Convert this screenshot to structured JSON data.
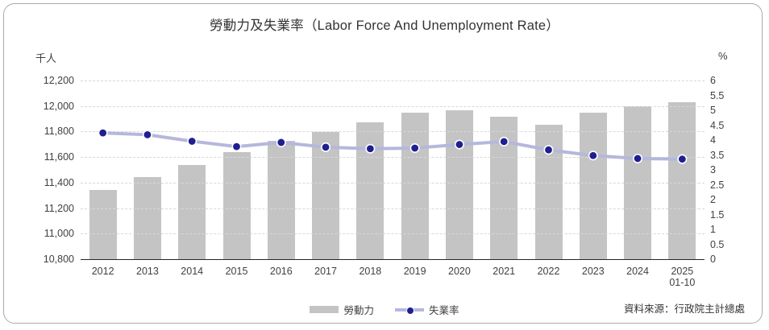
{
  "panel": {
    "title": "勞動力及失業率（Labor Force And Unemployment Rate）",
    "source": "資料來源：行政院主計總處"
  },
  "chart_data": {
    "type": "bar+line",
    "title": "勞動力及失業率（Labor Force And Unemployment Rate）",
    "categories": [
      "2012",
      "2013",
      "2014",
      "2015",
      "2016",
      "2017",
      "2018",
      "2019",
      "2020",
      "2021",
      "2022",
      "2023",
      "2024",
      "2025\n01-10"
    ],
    "series": [
      {
        "name": "勞動力",
        "type": "bar",
        "axis": "left",
        "color": "#c4c4c4",
        "values": [
          11341,
          11445,
          11535,
          11638,
          11727,
          11795,
          11874,
          11946,
          11964,
          11919,
          11853,
          11945,
          12000,
          12030
        ]
      },
      {
        "name": "失業率",
        "type": "line",
        "axis": "right",
        "color": "#b5b7dc",
        "marker_color": "#1f1f8f",
        "marker_outline": "#ffffff",
        "values": [
          4.24,
          4.18,
          3.96,
          3.78,
          3.92,
          3.76,
          3.71,
          3.73,
          3.85,
          3.95,
          3.67,
          3.48,
          3.38,
          3.36
        ]
      }
    ],
    "left_axis": {
      "label": "千人",
      "min": 10800,
      "max": 12200,
      "step": 200
    },
    "right_axis": {
      "label": "%",
      "min": 0,
      "max": 6,
      "step": 0.5
    },
    "grid": true,
    "legend_position": "bottom"
  },
  "legend": {
    "items": [
      {
        "label": "勞動力",
        "type": "bar"
      },
      {
        "label": "失業率",
        "type": "line"
      }
    ]
  }
}
